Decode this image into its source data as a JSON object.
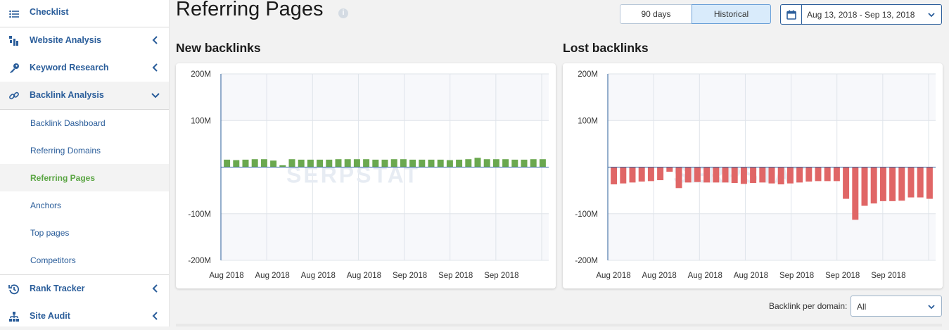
{
  "sidebar": {
    "items": [
      {
        "label": "Checklist",
        "icon": "list-icon"
      },
      {
        "label": "Website Analysis",
        "icon": "site-analysis-icon"
      },
      {
        "label": "Keyword Research",
        "icon": "key-icon"
      },
      {
        "label": "Backlink Analysis",
        "icon": "link-icon"
      },
      {
        "label": "Rank Tracker",
        "icon": "history-icon"
      },
      {
        "label": "Site Audit",
        "icon": "sitemap-icon"
      }
    ],
    "subitems": [
      "Backlink Dashboard",
      "Referring Domains",
      "Referring Pages",
      "Anchors",
      "Top pages",
      "Competitors"
    ],
    "active_subitem": "Referring Pages"
  },
  "header": {
    "title": "Referring Pages",
    "info_icon": "info-icon",
    "range_buttons": [
      "90 days",
      "Historical"
    ],
    "selected_range": "Historical",
    "date_range": "Aug 13, 2018 - Sep 13, 2018"
  },
  "filter": {
    "label": "Backlink per domain:",
    "value": "All"
  },
  "colors": {
    "accent": "#2a5d9a",
    "new_bar": "#6aa84f",
    "lost_bar": "#e06666",
    "active_sub": "#5aa543"
  },
  "watermark": "SERPSTAT",
  "chart_data": [
    {
      "type": "bar",
      "title": "New backlinks",
      "ylim": [
        -200,
        200
      ],
      "yticks": [
        "200M",
        "100M",
        "-100M",
        "-200M"
      ],
      "xticks": [
        "Aug 2018",
        "Aug 2018",
        "Aug 2018",
        "Aug 2018",
        "Sep 2018",
        "Sep 2018",
        "Sep 2018"
      ],
      "color": "#6aa84f",
      "values": [
        16,
        15,
        16,
        17,
        17,
        14,
        4,
        17,
        16,
        16,
        16,
        16,
        17,
        17,
        17,
        17,
        16,
        16,
        17,
        17,
        16,
        16,
        16,
        16,
        15,
        16,
        17,
        20,
        17,
        17,
        17,
        16,
        16,
        17,
        17
      ]
    },
    {
      "type": "bar",
      "title": "Lost backlinks",
      "ylim": [
        -200,
        200
      ],
      "yticks": [
        "200M",
        "100M",
        "-100M",
        "-200M"
      ],
      "xticks": [
        "Aug 2018",
        "Aug 2018",
        "Aug 2018",
        "Aug 2018",
        "Sep 2018",
        "Sep 2018",
        "Sep 2018"
      ],
      "color": "#e06666",
      "values": [
        -37,
        -35,
        -33,
        -31,
        -30,
        -28,
        -10,
        -45,
        -33,
        -32,
        -33,
        -33,
        -33,
        -34,
        -36,
        -34,
        -33,
        -35,
        -37,
        -35,
        -33,
        -31,
        -30,
        -30,
        -30,
        -68,
        -113,
        -83,
        -78,
        -73,
        -73,
        -72,
        -65,
        -65,
        -68
      ]
    }
  ]
}
